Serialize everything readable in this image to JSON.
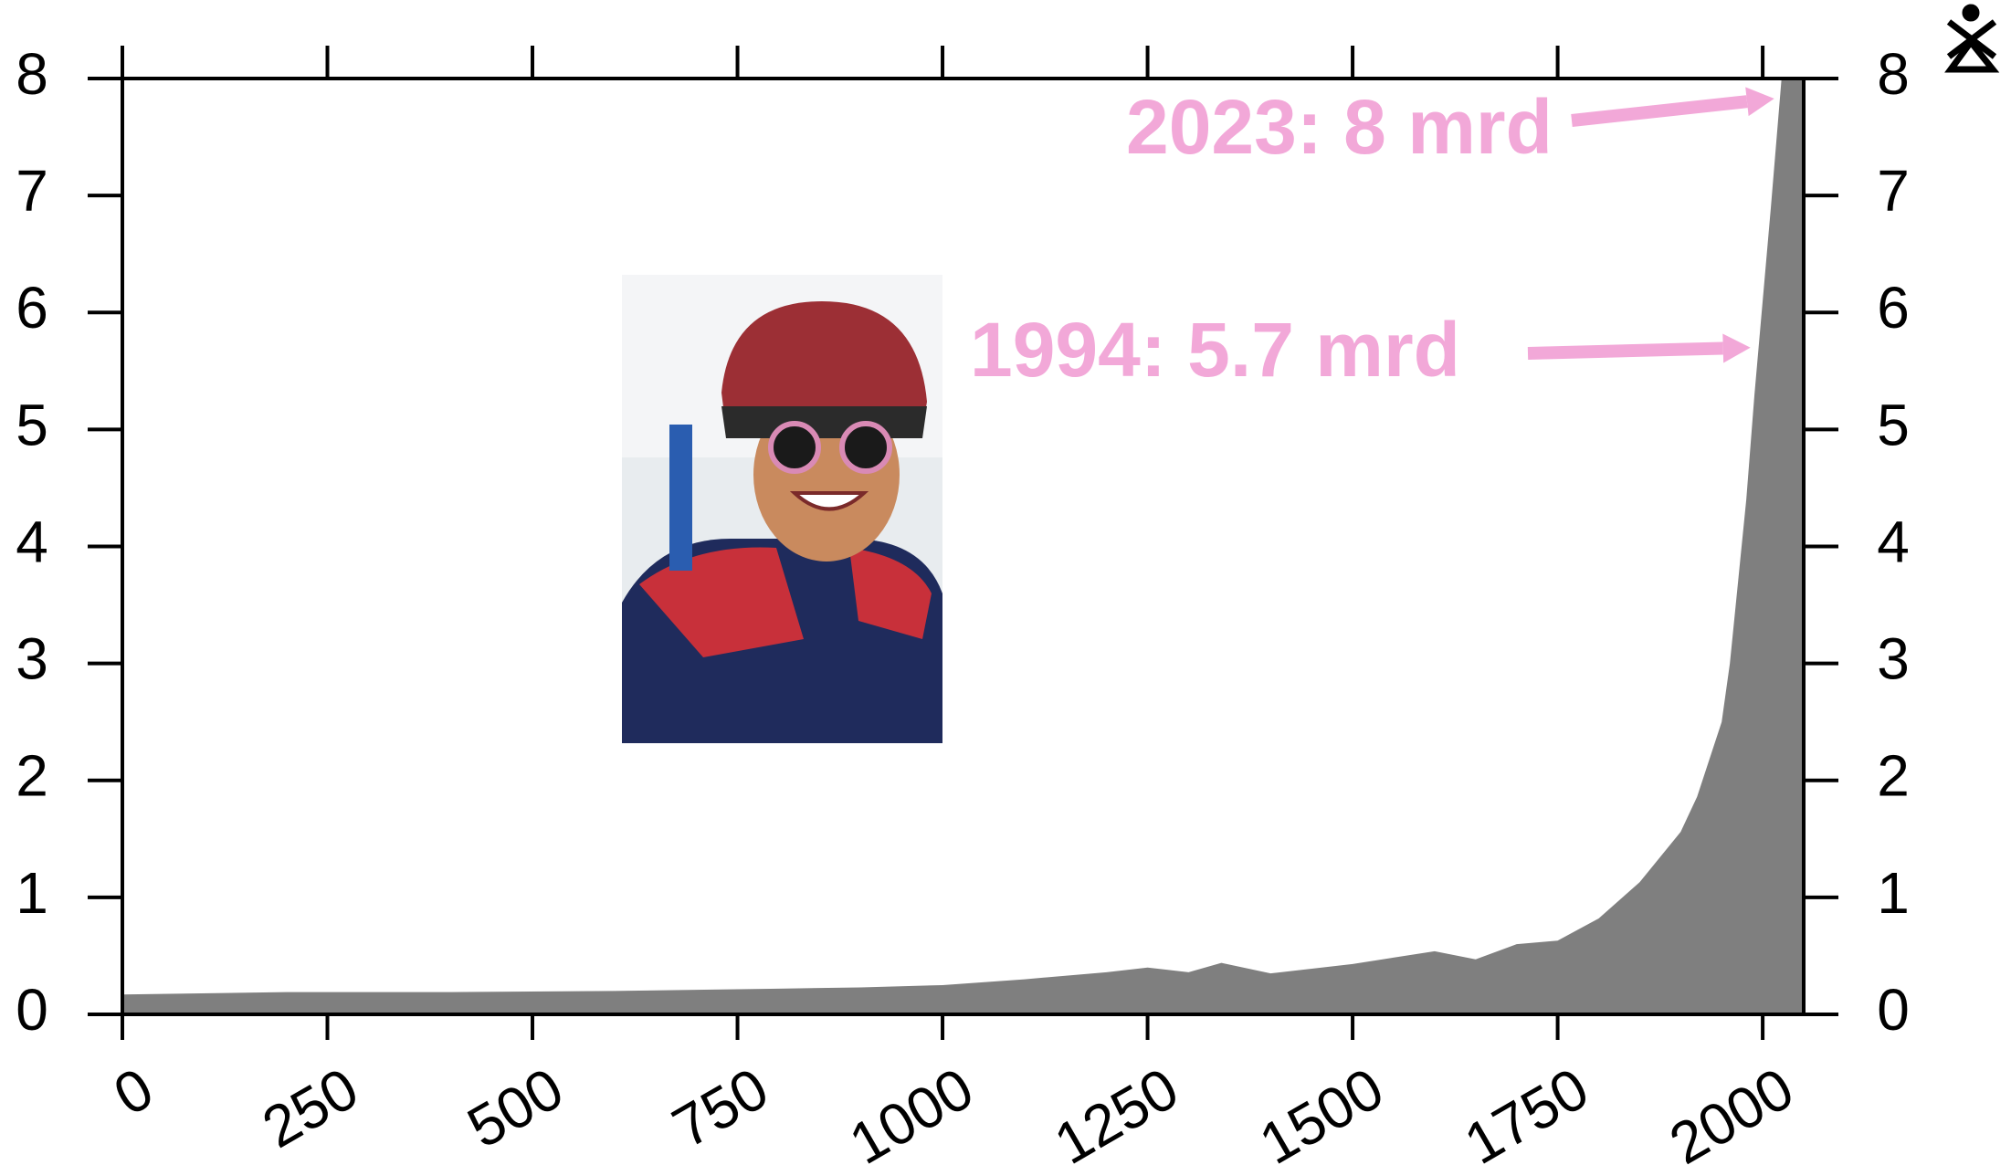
{
  "chart_data": {
    "type": "area",
    "x": [
      0,
      200,
      400,
      600,
      800,
      900,
      1000,
      1100,
      1200,
      1250,
      1300,
      1340,
      1400,
      1500,
      1600,
      1650,
      1700,
      1750,
      1800,
      1850,
      1900,
      1920,
      1950,
      1960,
      1970,
      1980,
      1990,
      2000,
      2010,
      2023,
      2050
    ],
    "values": [
      0.17,
      0.19,
      0.19,
      0.2,
      0.22,
      0.23,
      0.25,
      0.3,
      0.36,
      0.4,
      0.36,
      0.44,
      0.35,
      0.43,
      0.54,
      0.47,
      0.6,
      0.63,
      0.82,
      1.13,
      1.56,
      1.86,
      2.5,
      3.0,
      3.7,
      4.4,
      5.3,
      6.1,
      6.9,
      8.0,
      8.0
    ],
    "color": "#7f7f7f",
    "xlim": [
      0,
      2050
    ],
    "xticks": [
      0,
      250,
      500,
      750,
      1000,
      1250,
      1500,
      1750,
      2000
    ],
    "ylim": [
      0,
      8
    ],
    "yticks": [
      0,
      1,
      2,
      3,
      4,
      5,
      6,
      7,
      8
    ],
    "annotations": [
      {
        "text": "2023: 8 mrd",
        "x": 2023,
        "y": 8
      },
      {
        "text": "1994: 5.7 mrd",
        "x": 1994,
        "y": 5.7
      }
    ],
    "annotation_color": "#f2a8d8"
  }
}
